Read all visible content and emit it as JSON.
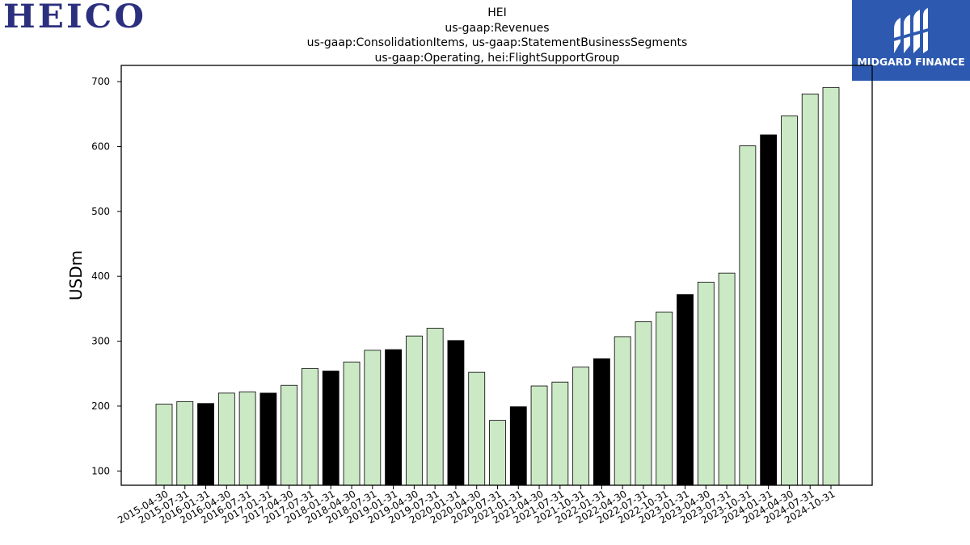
{
  "logos": {
    "left_text": "HEICO",
    "right_text": "MIDGARD FINANCE",
    "right_bg": "#2d5ab0",
    "left_color": "#2b2f7e"
  },
  "chart_data": {
    "type": "bar",
    "title_lines": [
      "HEI",
      "us-gaap:Revenues",
      "us-gaap:ConsolidationItems, us-gaap:StatementBusinessSegments",
      "us-gaap:Operating, hei:FlightSupportGroup"
    ],
    "xlabel": "",
    "ylabel": "USDm",
    "ylim": [
      78,
      725
    ],
    "yticks": [
      100,
      200,
      300,
      400,
      500,
      600,
      700
    ],
    "colors": {
      "default": "#cce9c6",
      "highlight": "#000000",
      "edge": "#000000"
    },
    "categories": [
      "2015-04-30",
      "2015-07-31",
      "2016-01-31",
      "2016-04-30",
      "2016-07-31",
      "2017-01-31",
      "2017-04-30",
      "2017-07-31",
      "2018-01-31",
      "2018-04-30",
      "2018-07-31",
      "2019-01-31",
      "2019-04-30",
      "2019-07-31",
      "2020-01-31",
      "2020-04-30",
      "2020-07-31",
      "2021-01-31",
      "2021-04-30",
      "2021-07-31",
      "2021-10-31",
      "2022-01-31",
      "2022-04-30",
      "2022-07-31",
      "2022-10-31",
      "2023-01-31",
      "2023-04-30",
      "2023-07-31",
      "2023-10-31",
      "2024-01-31",
      "2024-04-30",
      "2024-07-31",
      "2024-10-31"
    ],
    "values": [
      203,
      207,
      204,
      220,
      222,
      220,
      232,
      258,
      254,
      268,
      286,
      287,
      308,
      320,
      301,
      252,
      178,
      199,
      231,
      237,
      260,
      273,
      307,
      330,
      345,
      372,
      391,
      405,
      601,
      618,
      647,
      681,
      691
    ],
    "highlight": [
      false,
      false,
      true,
      false,
      false,
      true,
      false,
      false,
      true,
      false,
      false,
      true,
      false,
      false,
      true,
      false,
      false,
      true,
      false,
      false,
      false,
      true,
      false,
      false,
      false,
      true,
      false,
      false,
      false,
      true,
      false,
      false,
      false
    ]
  }
}
